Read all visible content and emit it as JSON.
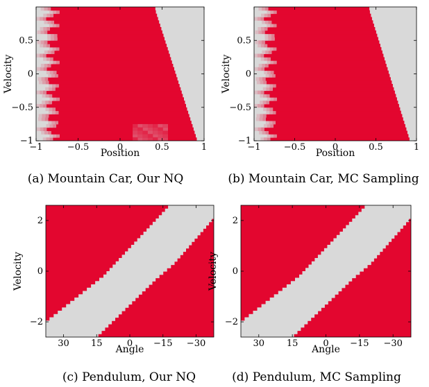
{
  "colors": {
    "red": "#e3062f",
    "gray": "#d9d9d9",
    "fade": "#e8c7cc"
  },
  "chart_data": [
    {
      "type": "heatmap",
      "caption": "(a) Mountain Car, Our NQ",
      "xlabel": "Position",
      "ylabel": "Velocity",
      "xlim": [
        -1,
        1
      ],
      "ylim": [
        -1,
        1
      ],
      "xticks": [
        -1,
        -0.5,
        0,
        0.5,
        1
      ],
      "xtick_labels": [
        "−1",
        "−0.5",
        "0",
        "0.5",
        "1"
      ],
      "yticks": [
        -1,
        -0.5,
        0,
        0.5
      ],
      "ytick_labels": [
        "−1",
        "−0.5",
        "0",
        "0.5"
      ],
      "grid": false,
      "boundary_kind": "mc",
      "left_fade_edge": -0.8,
      "boundary": [
        [
          0.92,
          -1.0
        ],
        [
          0.42,
          0.95
        ]
      ],
      "noisy_fade": true
    },
    {
      "type": "heatmap",
      "caption": "(b) Mountain Car, MC Sampling",
      "xlabel": "Position",
      "ylabel": "Velocity",
      "xlim": [
        -1,
        1
      ],
      "ylim": [
        -1,
        1
      ],
      "xticks": [
        -1,
        -0.5,
        0,
        0.5,
        1
      ],
      "xtick_labels": [
        "−1",
        "−0.5",
        "0",
        "0.5",
        "1"
      ],
      "yticks": [
        -1,
        -0.5,
        0,
        0.5
      ],
      "ytick_labels": [
        "−1",
        "−0.5",
        "0",
        "0.5"
      ],
      "grid": false,
      "boundary_kind": "mc",
      "left_fade_edge": -0.8,
      "boundary": [
        [
          0.92,
          -1.0
        ],
        [
          0.42,
          0.95
        ]
      ],
      "noisy_fade": false
    },
    {
      "type": "heatmap",
      "caption": "(c) Pendulum, Our NQ",
      "xlabel": "Angle",
      "ylabel": "Velocity",
      "xlim": [
        38,
        -38
      ],
      "ylim": [
        -2.6,
        2.6
      ],
      "xticks": [
        30,
        15,
        0,
        -15,
        -30
      ],
      "xtick_labels": [
        "30",
        "15",
        "0",
        "−15",
        "−30"
      ],
      "yticks": [
        -2,
        0,
        2
      ],
      "ytick_labels": [
        "−2",
        "0",
        "2"
      ],
      "grid": false,
      "boundary_kind": "pendulum",
      "band_lower": [
        [
          38,
          -2.6
        ],
        [
          15,
          -2.6
        ],
        [
          -12,
          -0.3
        ],
        [
          -20,
          0.3
        ],
        [
          -38,
          2.1
        ]
      ],
      "band_upper": [
        [
          38,
          -2.0
        ],
        [
          12,
          -0.2
        ],
        [
          -18,
          2.6
        ],
        [
          -38,
          2.6
        ]
      ]
    },
    {
      "type": "heatmap",
      "caption": "(d) Pendulum, MC Sampling",
      "xlabel": "Angle",
      "ylabel": "Velocity",
      "xlim": [
        38,
        -38
      ],
      "ylim": [
        -2.6,
        2.6
      ],
      "xticks": [
        30,
        15,
        0,
        -15,
        -30
      ],
      "xtick_labels": [
        "30",
        "15",
        "0",
        "−15",
        "−30"
      ],
      "yticks": [
        -2,
        0,
        2
      ],
      "ytick_labels": [
        "−2",
        "0",
        "2"
      ],
      "grid": false,
      "boundary_kind": "pendulum",
      "band_lower": [
        [
          38,
          -2.6
        ],
        [
          15,
          -2.6
        ],
        [
          -12,
          -0.3
        ],
        [
          -20,
          0.3
        ],
        [
          -38,
          2.1
        ]
      ],
      "band_upper": [
        [
          38,
          -2.0
        ],
        [
          12,
          -0.2
        ],
        [
          -18,
          2.6
        ],
        [
          -38,
          2.6
        ]
      ]
    }
  ]
}
